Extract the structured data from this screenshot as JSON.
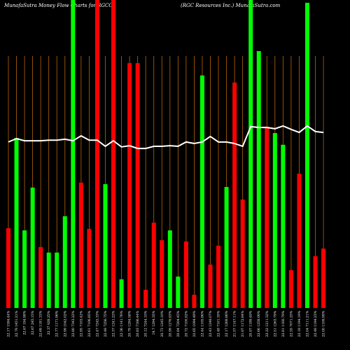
{
  "chart_data": {
    "type": "bar",
    "title": "MunafaSutra  Money Flow  Charts for RGCO",
    "subtitle": "(RGC Resources Inc.) MunafaSutra.com",
    "categories": [
      "22.17 1594.44%",
      "22.79 1451.21%",
      "22.67 194.98%",
      "22.67 245.15%",
      "22.69 1181.33%",
      "22.37 928.25%",
      "22.77 1171.96%",
      "22.99 1042.02%",
      "22.80 7343.22%",
      "22.85 7103.42%",
      "22.61 7106.85%",
      "22.47 7245.33%",
      "22.48 7256.75%",
      "22.37 1241.22%",
      "22.36 1141.76%",
      "20.79 1294.58%",
      "20.83 7166.44%",
      "20.12 7244.10%",
      "19.7 1294.35%",
      "20.73 1245.10%",
      "20.99 1276.93%",
      "20.84 7204.45%",
      "20.72 7100.92%",
      "22.65 1094.48%",
      "22.44 1105.86%",
      "22.43 1248.07%",
      "22.48 7101.35%",
      "22.17 1268.86%",
      "21.57 1147.11%",
      "21.97 1172.84%",
      "20.97 1189.49%",
      "22.66 1258.06%",
      "22.22 1211.32%",
      "22.51 1263.79%",
      "22.81 1160.79%",
      "22.55 7071.25%",
      "22.18 1194.19%",
      "22.04 7111.21%",
      "22.48 1194.23%",
      "22.00 1109.99%"
    ],
    "values": [
      25.9,
      55.2,
      25.2,
      39.1,
      19.8,
      18,
      18,
      29.8,
      100,
      40.7,
      25.7,
      100,
      40.2,
      100,
      9.3,
      79.5,
      79.5,
      5.9,
      27.7,
      22,
      25.2,
      10.2,
      21.6,
      4.3,
      75.5,
      14.1,
      20.2,
      39.3,
      73.2,
      35.2,
      100,
      83.4,
      58.9,
      56.8,
      53,
      12.3,
      43.6,
      99.1,
      16.8,
      19.3
    ],
    "bar_colors": [
      "#ff0000",
      "#00ff00",
      "#00ff00",
      "#00ff00",
      "#ff0000",
      "#00ff00",
      "#00ff00",
      "#00ff00",
      "#00ff00",
      "#ff0000",
      "#ff0000",
      "#ff0000",
      "#00ff00",
      "#ff0000",
      "#00ff00",
      "#ff0000",
      "#ff0000",
      "#ff0000",
      "#ff0000",
      "#ff0000",
      "#00ff00",
      "#00ff00",
      "#ff0000",
      "#ff0000",
      "#00ff00",
      "#ff0000",
      "#ff0000",
      "#00ff00",
      "#ff0000",
      "#ff0000",
      "#00ff00",
      "#00ff00",
      "#ff0000",
      "#00ff00",
      "#00ff00",
      "#ff0000",
      "#ff0000",
      "#00ff00",
      "#ff0000",
      "#ff0000"
    ],
    "line_values": [
      53.9,
      55,
      54.3,
      54.3,
      54.3,
      54.5,
      54.5,
      54.8,
      54.3,
      55.9,
      54.5,
      54.5,
      52.5,
      54.3,
      52.3,
      52.7,
      51.8,
      51.8,
      52.5,
      52.5,
      52.7,
      52.5,
      53.9,
      53.4,
      53.9,
      55.7,
      53.9,
      53.9,
      53.4,
      52.5,
      58.9,
      58.6,
      58.6,
      58.2,
      59.1,
      58,
      57,
      59.1,
      57.3,
      57
    ],
    "line_color": "#ffffff",
    "grid_color": "#b8660b",
    "ylim": [
      0,
      100
    ]
  }
}
